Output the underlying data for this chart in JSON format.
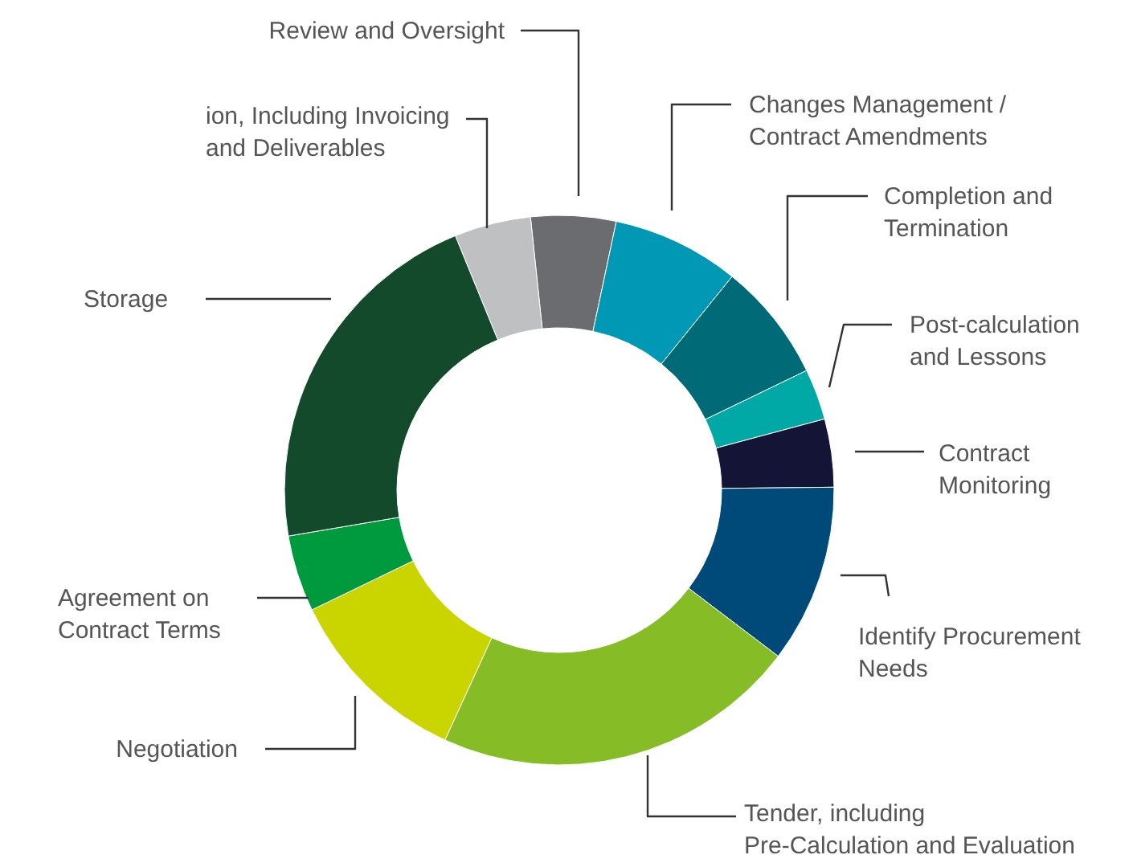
{
  "chart_data": {
    "type": "donut",
    "categories": [
      "Review and Oversight",
      "Changes Management /\nContract Amendments",
      "Completion and\nTermination",
      "Post-calculation\nand Lessons",
      "Contract\nMonitoring",
      "Identify Procurement\nNeeds",
      "Tender, including\nPre-Calculation and Evaluation",
      "Negotiation",
      "Agreement on\nContract Terms",
      "Storage",
      "ion, Including Invoicing\nand Deliverables"
    ],
    "values": [
      5,
      7.5,
      7,
      3,
      4,
      10.5,
      21.5,
      11,
      4.5,
      21.5,
      4.5
    ],
    "colors": [
      "#6b6c70",
      "#0098b4",
      "#006b76",
      "#00a8a6",
      "#141437",
      "#004a7a",
      "#86bc25",
      "#cad500",
      "#009a3e",
      "#134a2b",
      "#bfc0c2"
    ]
  }
}
